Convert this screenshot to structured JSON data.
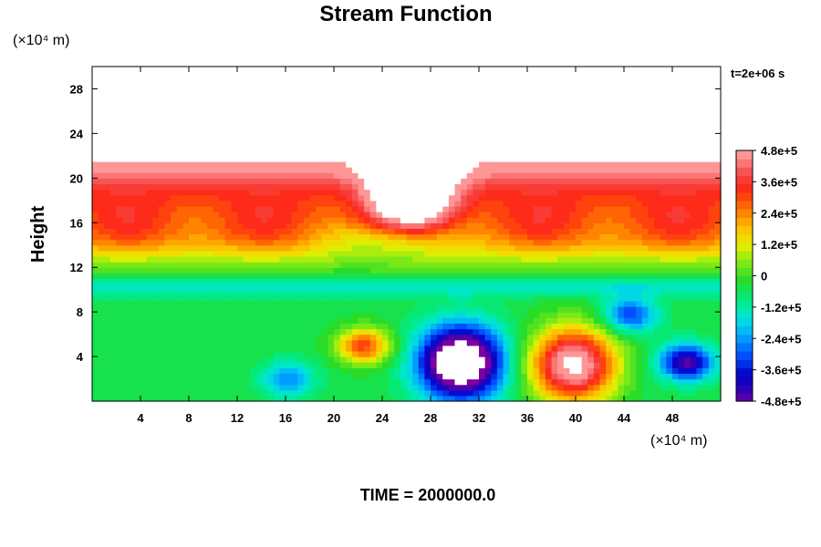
{
  "chart_data": {
    "type": "heatmap",
    "title": "Stream Function",
    "ylabel": "Height",
    "x_unit_label": "(×10⁴ m)",
    "y_unit_label": "(×10⁴ m)",
    "time_stamp": "t=2e+06 s",
    "footer": "TIME = 2000000.0",
    "xlim": [
      0,
      52
    ],
    "ylim": [
      0,
      30
    ],
    "x_ticks": [
      4,
      8,
      12,
      16,
      20,
      24,
      28,
      32,
      36,
      40,
      44,
      48
    ],
    "y_ticks": [
      4,
      8,
      12,
      16,
      20,
      24,
      28
    ],
    "x_tick_labels": [
      "4",
      "8",
      "12",
      "16",
      "20",
      "24",
      "28",
      "32",
      "36",
      "40",
      "44",
      "48"
    ],
    "y_tick_labels": [
      "4",
      "8",
      "12",
      "16",
      "20",
      "24",
      "28"
    ],
    "colorbar": {
      "min": -480000,
      "max": 480000,
      "labels": [
        "4.8e+5",
        "3.6e+5",
        "2.4e+5",
        "1.2e+5",
        "0",
        "-1.2e+5",
        "-2.4e+5",
        "-3.6e+5",
        "-4.8e+5"
      ],
      "label_values": [
        480000,
        360000,
        240000,
        120000,
        0,
        -120000,
        -240000,
        -360000,
        -480000
      ],
      "out_of_range_color": "#ffffff"
    },
    "field_summary": {
      "upper_layer_value": 480000,
      "mid_layer_value": 330000,
      "lower_layer_value": -30000,
      "features": [
        {
          "kind": "negative vortex",
          "x": 30.5,
          "y": 3.5,
          "value": -700000
        },
        {
          "kind": "positive vortex",
          "x": 39.8,
          "y": 3.3,
          "value": 600000
        },
        {
          "kind": "positive eddy",
          "x": 22.5,
          "y": 5.0,
          "value": 350000
        },
        {
          "kind": "negative eddy",
          "x": 49.2,
          "y": 3.5,
          "value": -420000
        },
        {
          "kind": "negative eddy",
          "x": 44.5,
          "y": 7.8,
          "value": -280000
        },
        {
          "kind": "negative eddy",
          "x": 16.2,
          "y": 2.0,
          "value": -200000
        },
        {
          "kind": "positive pocket",
          "x": 26.5,
          "y": 19.2,
          "value": 560000
        }
      ]
    }
  }
}
